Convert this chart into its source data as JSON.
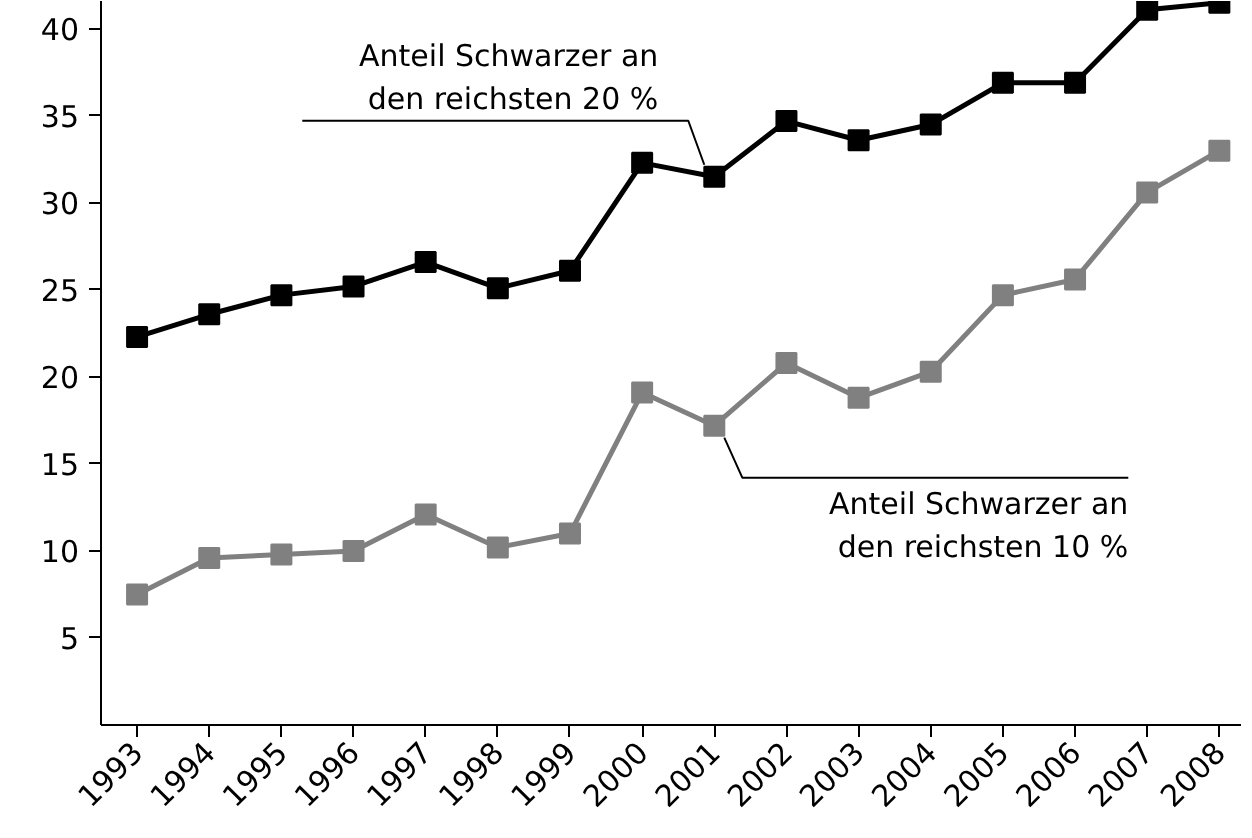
{
  "chart_data": {
    "type": "line",
    "categories": [
      "1993",
      "1994",
      "1995",
      "1996",
      "1997",
      "1998",
      "1999",
      "2000",
      "2001",
      "2002",
      "2003",
      "2004",
      "2005",
      "2006",
      "2007",
      "2008"
    ],
    "series": [
      {
        "color": "#000000",
        "values": [
          22.3,
          23.6,
          24.7,
          25.2,
          26.6,
          25.1,
          26.1,
          32.3,
          31.5,
          34.7,
          33.6,
          34.5,
          36.9,
          36.9,
          41.1,
          41.5
        ]
      },
      {
        "color": "#808080",
        "values": [
          7.5,
          9.6,
          9.8,
          10.0,
          12.1,
          10.2,
          11.0,
          19.1,
          17.2,
          20.8,
          18.8,
          20.3,
          24.7,
          25.6,
          30.6,
          33.0
        ]
      }
    ],
    "ylim": [
      0,
      41.6
    ],
    "yticks": [
      5,
      10,
      15,
      20,
      25,
      30,
      35,
      40
    ],
    "grid": false,
    "marker": "square",
    "line_style": "solid",
    "annotations": [
      {
        "text": "Anteil Schwarzer an\nden reichsten 20 %",
        "x": "2001",
        "y": 31.5
      },
      {
        "text": "Anteil Schwarzer an\nden reichsten 10 %",
        "x": "2001",
        "y": 17.2
      }
    ]
  }
}
